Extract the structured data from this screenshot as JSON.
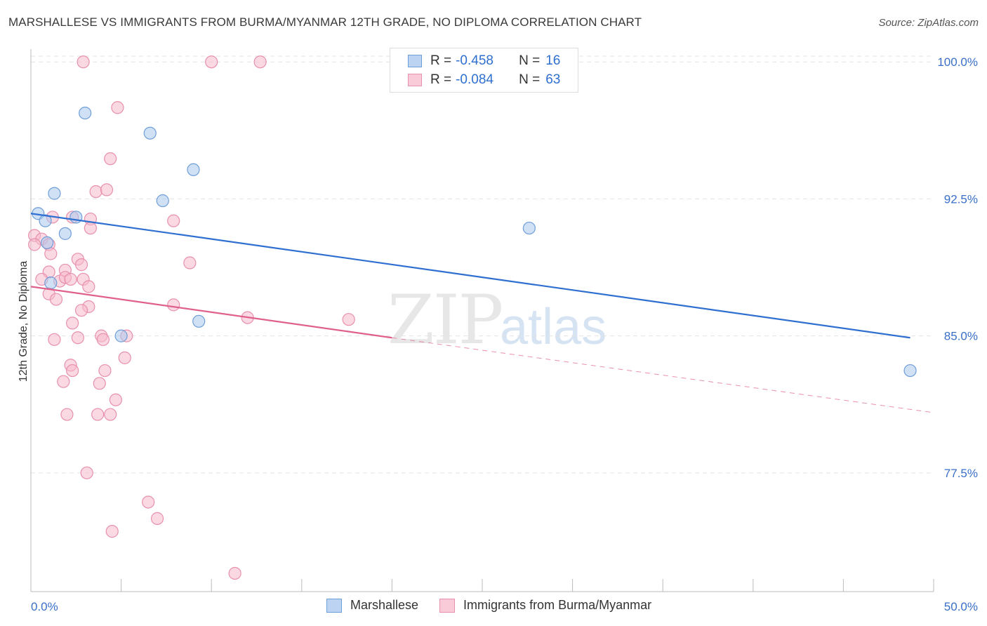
{
  "title": "MARSHALLESE VS IMMIGRANTS FROM BURMA/MYANMAR 12TH GRADE, NO DIPLOMA CORRELATION CHART",
  "source": "Source: ZipAtlas.com",
  "watermark": {
    "zip": "ZIP",
    "atlas": "atlas"
  },
  "legend": {
    "rows": [
      {
        "r_label": "R =",
        "r_value": "-0.458",
        "n_label": "N =",
        "n_value": "16"
      },
      {
        "r_label": "R =",
        "r_value": "-0.084",
        "n_label": "N =",
        "n_value": "63"
      }
    ]
  },
  "bottom_legend": {
    "series1": "Marshallese",
    "series2": "Immigrants from Burma/Myanmar"
  },
  "colors": {
    "blue_fill": "#a9c8ef",
    "blue_stroke": "#6f9ed8",
    "blue_line": "#2f6fd0",
    "pink_fill": "#f6b9cc",
    "pink_stroke": "#e890ae",
    "pink_line": "#e0608d",
    "tick_text": "#3a6fc8",
    "grid": "#e3e3e3"
  },
  "chart_data": {
    "type": "scatter",
    "title": "MARSHALLESE VS IMMIGRANTS FROM BURMA/MYANMAR 12TH GRADE, NO DIPLOMA CORRELATION CHART",
    "xlabel": "",
    "ylabel": "12th Grade, No Diploma",
    "xlim": [
      0,
      50
    ],
    "ylim": [
      71,
      100.7
    ],
    "x_tick_labels": [
      "0.0%",
      "50.0%"
    ],
    "y_ticks": [
      77.5,
      85.0,
      92.5,
      100.0
    ],
    "y_tick_labels": [
      "77.5%",
      "85.0%",
      "92.5%",
      "100.0%"
    ],
    "grid": true,
    "series": [
      {
        "name": "Marshallese",
        "points": [
          [
            3.0,
            97.2
          ],
          [
            6.6,
            96.1
          ],
          [
            9.0,
            94.1
          ],
          [
            1.3,
            92.8
          ],
          [
            7.3,
            92.4
          ],
          [
            0.4,
            91.7
          ],
          [
            0.8,
            91.3
          ],
          [
            2.5,
            91.5
          ],
          [
            1.9,
            90.6
          ],
          [
            0.9,
            90.1
          ],
          [
            27.6,
            90.9
          ],
          [
            1.1,
            87.9
          ],
          [
            9.3,
            85.8
          ],
          [
            5.0,
            85.0
          ],
          [
            48.7,
            83.1
          ]
        ],
        "trend": {
          "x": [
            0,
            48.7
          ],
          "y": [
            91.7,
            84.9
          ],
          "dashed_to": null
        }
      },
      {
        "name": "Immigrants from Burma/Myanmar",
        "points": [
          [
            2.9,
            100.0
          ],
          [
            10.0,
            100.0
          ],
          [
            12.7,
            100.0
          ],
          [
            4.8,
            97.5
          ],
          [
            4.4,
            94.7
          ],
          [
            3.6,
            92.9
          ],
          [
            4.2,
            93.0
          ],
          [
            2.3,
            91.5
          ],
          [
            3.3,
            91.4
          ],
          [
            7.9,
            91.3
          ],
          [
            1.2,
            91.5
          ],
          [
            3.3,
            90.9
          ],
          [
            0.2,
            90.5
          ],
          [
            0.6,
            90.3
          ],
          [
            0.2,
            90.0
          ],
          [
            1.0,
            90.0
          ],
          [
            1.1,
            89.5
          ],
          [
            2.6,
            89.2
          ],
          [
            2.8,
            88.9
          ],
          [
            8.8,
            89.0
          ],
          [
            1.9,
            88.6
          ],
          [
            1.0,
            88.5
          ],
          [
            0.6,
            88.1
          ],
          [
            1.6,
            88.0
          ],
          [
            1.9,
            88.2
          ],
          [
            2.2,
            88.1
          ],
          [
            2.9,
            88.1
          ],
          [
            3.2,
            87.7
          ],
          [
            1.0,
            87.3
          ],
          [
            1.4,
            87.0
          ],
          [
            3.2,
            86.6
          ],
          [
            2.8,
            86.4
          ],
          [
            7.9,
            86.7
          ],
          [
            12.0,
            86.0
          ],
          [
            17.6,
            85.9
          ],
          [
            2.3,
            85.7
          ],
          [
            1.3,
            84.8
          ],
          [
            2.6,
            84.9
          ],
          [
            3.9,
            85.0
          ],
          [
            4.0,
            84.8
          ],
          [
            5.3,
            85.0
          ],
          [
            5.2,
            83.8
          ],
          [
            2.2,
            83.4
          ],
          [
            2.3,
            83.1
          ],
          [
            4.1,
            83.1
          ],
          [
            1.8,
            82.5
          ],
          [
            3.8,
            82.4
          ],
          [
            4.7,
            81.5
          ],
          [
            2.0,
            80.7
          ],
          [
            3.7,
            80.7
          ],
          [
            4.4,
            80.7
          ],
          [
            3.1,
            77.5
          ],
          [
            6.5,
            75.9
          ],
          [
            7.0,
            75.0
          ],
          [
            4.5,
            74.3
          ],
          [
            11.3,
            72.0
          ]
        ],
        "trend": {
          "x": [
            0,
            20.0
          ],
          "y": [
            87.7,
            84.9
          ],
          "dashed_to": [
            50.0,
            80.8
          ]
        }
      }
    ]
  }
}
